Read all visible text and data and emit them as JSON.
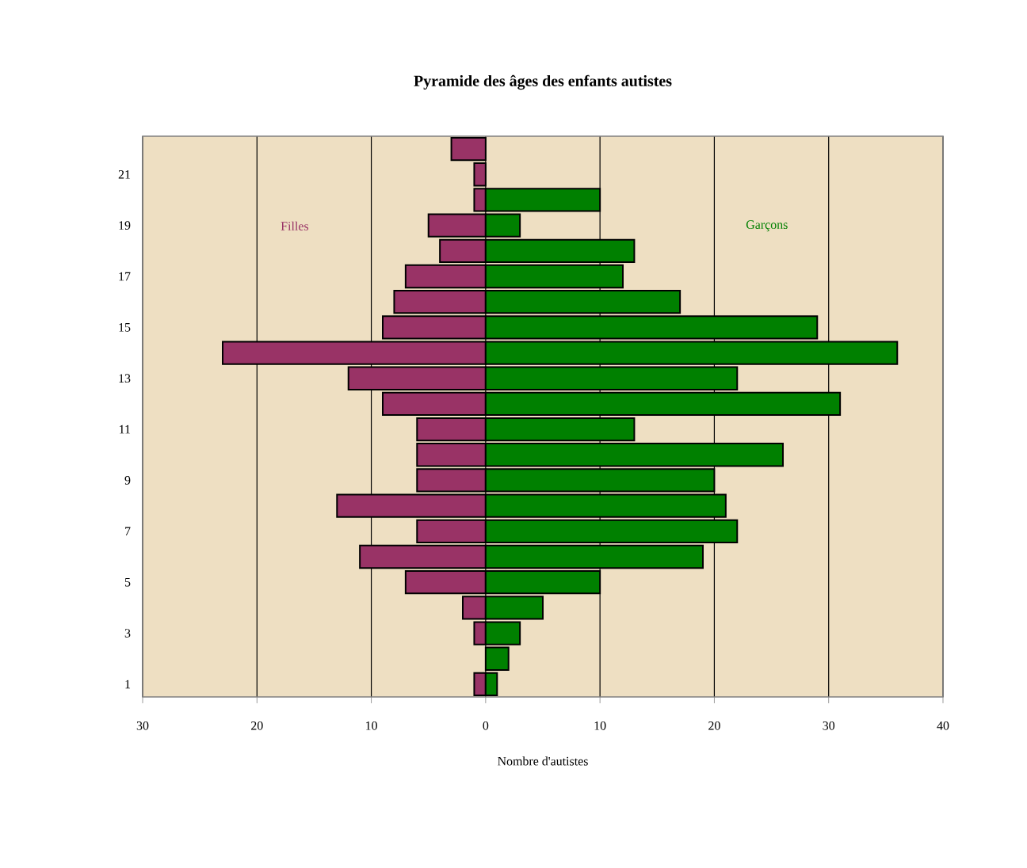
{
  "chart_data": {
    "type": "bar",
    "orientation": "horizontal",
    "stacked": true,
    "title": "Pyramide des âges des enfants autistes",
    "xlabel": "Nombre d'autistes",
    "categories": [
      null,
      "21",
      null,
      "19",
      null,
      "17",
      null,
      "15",
      null,
      "13",
      null,
      "11",
      null,
      "9",
      null,
      "7",
      null,
      "5",
      null,
      "3",
      null,
      "1"
    ],
    "series": [
      {
        "name": "Filles",
        "color": "#993366",
        "values": [
          -3,
          -1,
          -1,
          -5,
          -4,
          -7,
          -8,
          -9,
          -23,
          -12,
          -9,
          -6,
          -6,
          -6,
          -13,
          -6,
          -11,
          -7,
          -2,
          -1,
          0,
          -1
        ]
      },
      {
        "name": "Garçons",
        "color": "#008000",
        "values": [
          0,
          0,
          10,
          3,
          13,
          12,
          17,
          29,
          36,
          22,
          31,
          13,
          26,
          20,
          21,
          22,
          19,
          10,
          5,
          3,
          2,
          1
        ]
      }
    ],
    "xlim": [
      -30,
      40
    ],
    "xticks": [
      {
        "value": -30,
        "label": "30"
      },
      {
        "value": -20,
        "label": "20"
      },
      {
        "value": -10,
        "label": "10"
      },
      0,
      10,
      20,
      30,
      40
    ],
    "grid": "x",
    "legend": false
  }
}
